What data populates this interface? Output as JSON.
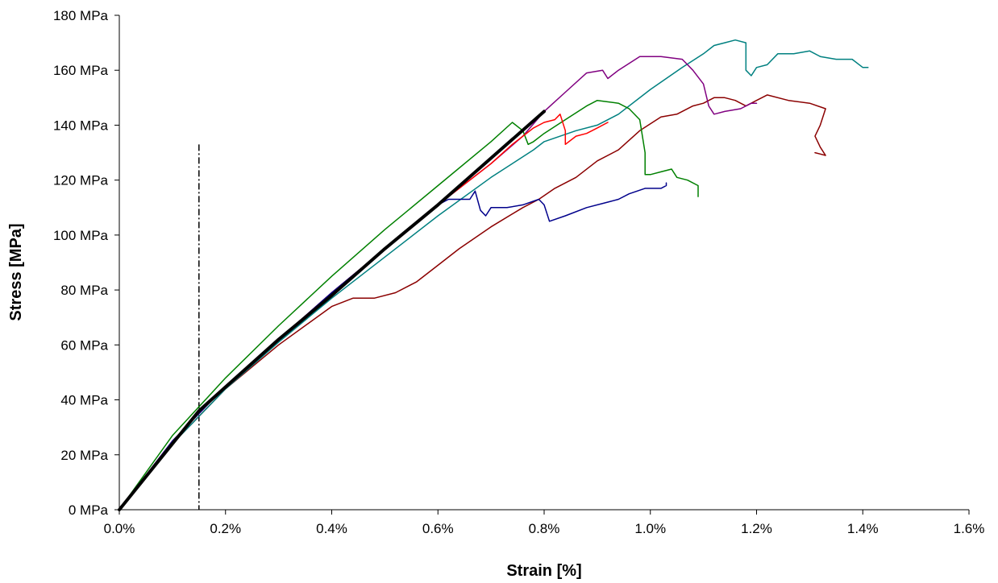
{
  "chart_data": {
    "type": "line",
    "title": "",
    "xlabel": "Strain [%]",
    "ylabel": "Stress [MPa]",
    "xlim": [
      0,
      1.6
    ],
    "ylim": [
      0,
      180
    ],
    "x_ticks": [
      0,
      0.2,
      0.4,
      0.6,
      0.8,
      1.0,
      1.2,
      1.4,
      1.6
    ],
    "x_tick_labels": [
      "0.0%",
      "0.2%",
      "0.4%",
      "0.6%",
      "0.8%",
      "1.0%",
      "1.2%",
      "1.4%",
      "1.6%"
    ],
    "y_ticks": [
      0,
      20,
      40,
      60,
      80,
      100,
      120,
      140,
      160,
      180
    ],
    "y_tick_labels": [
      "0 MPa",
      "20 MPa",
      "40 MPa",
      "60 MPa",
      "80 MPa",
      "100 MPa",
      "120 MPa",
      "140 MPa",
      "160 MPa",
      "180 MPa"
    ],
    "grid": false,
    "legend": "none",
    "reference_line": {
      "x": 0.15,
      "style": "dash-dot",
      "y_range": [
        0,
        133
      ],
      "color": "#000000"
    },
    "series": [
      {
        "color": "#8B0000",
        "width": 1.5,
        "points": [
          [
            0,
            0
          ],
          [
            0.1,
            24
          ],
          [
            0.2,
            44
          ],
          [
            0.3,
            60
          ],
          [
            0.4,
            74
          ],
          [
            0.44,
            77
          ],
          [
            0.48,
            77
          ],
          [
            0.52,
            79
          ],
          [
            0.56,
            83
          ],
          [
            0.6,
            89
          ],
          [
            0.64,
            95
          ],
          [
            0.7,
            103
          ],
          [
            0.76,
            110
          ],
          [
            0.79,
            113
          ],
          [
            0.82,
            117
          ],
          [
            0.86,
            121
          ],
          [
            0.9,
            127
          ],
          [
            0.94,
            131
          ],
          [
            0.98,
            138
          ],
          [
            1.02,
            143
          ],
          [
            1.05,
            144
          ],
          [
            1.08,
            147
          ],
          [
            1.1,
            148
          ],
          [
            1.12,
            150
          ],
          [
            1.14,
            150
          ],
          [
            1.16,
            149
          ],
          [
            1.18,
            147
          ],
          [
            1.2,
            149
          ],
          [
            1.22,
            151
          ],
          [
            1.26,
            149
          ],
          [
            1.3,
            148
          ],
          [
            1.33,
            146
          ],
          [
            1.32,
            140
          ],
          [
            1.31,
            136
          ],
          [
            1.32,
            132
          ],
          [
            1.33,
            129
          ],
          [
            1.31,
            130
          ]
        ]
      },
      {
        "color": "#008080",
        "width": 1.5,
        "points": [
          [
            0,
            0
          ],
          [
            0.1,
            24
          ],
          [
            0.2,
            44
          ],
          [
            0.3,
            61
          ],
          [
            0.4,
            77
          ],
          [
            0.5,
            92
          ],
          [
            0.6,
            107
          ],
          [
            0.7,
            121
          ],
          [
            0.78,
            131
          ],
          [
            0.8,
            134
          ],
          [
            0.86,
            138
          ],
          [
            0.9,
            140
          ],
          [
            0.94,
            144
          ],
          [
            1.0,
            153
          ],
          [
            1.06,
            161
          ],
          [
            1.1,
            166
          ],
          [
            1.12,
            169
          ],
          [
            1.14,
            170
          ],
          [
            1.16,
            171
          ],
          [
            1.18,
            170
          ],
          [
            1.18,
            165
          ],
          [
            1.18,
            160
          ],
          [
            1.19,
            158
          ],
          [
            1.2,
            161
          ],
          [
            1.22,
            162
          ],
          [
            1.24,
            166
          ],
          [
            1.27,
            166
          ],
          [
            1.3,
            167
          ],
          [
            1.32,
            165
          ],
          [
            1.35,
            164
          ],
          [
            1.38,
            164
          ],
          [
            1.4,
            161
          ],
          [
            1.41,
            161
          ]
        ]
      },
      {
        "color": "#800080",
        "width": 1.5,
        "points": [
          [
            0,
            0
          ],
          [
            0.1,
            25
          ],
          [
            0.2,
            45
          ],
          [
            0.3,
            62
          ],
          [
            0.4,
            79
          ],
          [
            0.5,
            95
          ],
          [
            0.6,
            111
          ],
          [
            0.7,
            126
          ],
          [
            0.76,
            136
          ],
          [
            0.8,
            145
          ],
          [
            0.84,
            152
          ],
          [
            0.88,
            159
          ],
          [
            0.91,
            160
          ],
          [
            0.92,
            157
          ],
          [
            0.94,
            160
          ],
          [
            0.98,
            165
          ],
          [
            1.02,
            165
          ],
          [
            1.06,
            164
          ],
          [
            1.08,
            160
          ],
          [
            1.1,
            155
          ],
          [
            1.11,
            147
          ],
          [
            1.12,
            144
          ],
          [
            1.14,
            145
          ],
          [
            1.17,
            146
          ],
          [
            1.19,
            148
          ],
          [
            1.2,
            148
          ]
        ]
      },
      {
        "color": "#008000",
        "width": 1.5,
        "points": [
          [
            0,
            0
          ],
          [
            0.1,
            27
          ],
          [
            0.2,
            48
          ],
          [
            0.3,
            67
          ],
          [
            0.4,
            85
          ],
          [
            0.5,
            102
          ],
          [
            0.6,
            118
          ],
          [
            0.7,
            134
          ],
          [
            0.74,
            141
          ],
          [
            0.76,
            138
          ],
          [
            0.77,
            133
          ],
          [
            0.78,
            134
          ],
          [
            0.8,
            137
          ],
          [
            0.84,
            142
          ],
          [
            0.88,
            147
          ],
          [
            0.9,
            149
          ],
          [
            0.94,
            148
          ],
          [
            0.96,
            146
          ],
          [
            0.98,
            142
          ],
          [
            0.99,
            130
          ],
          [
            0.99,
            122
          ],
          [
            1.0,
            122
          ],
          [
            1.02,
            123
          ],
          [
            1.04,
            124
          ],
          [
            1.05,
            121
          ],
          [
            1.07,
            120
          ],
          [
            1.09,
            118
          ],
          [
            1.09,
            114
          ]
        ]
      },
      {
        "color": "#FF0000",
        "width": 1.5,
        "points": [
          [
            0,
            0
          ],
          [
            0.1,
            25
          ],
          [
            0.2,
            45
          ],
          [
            0.3,
            62
          ],
          [
            0.4,
            79
          ],
          [
            0.5,
            95
          ],
          [
            0.6,
            111
          ],
          [
            0.7,
            126
          ],
          [
            0.74,
            133
          ],
          [
            0.78,
            139
          ],
          [
            0.8,
            141
          ],
          [
            0.82,
            142
          ],
          [
            0.83,
            144
          ],
          [
            0.84,
            138
          ],
          [
            0.84,
            133
          ],
          [
            0.86,
            136
          ],
          [
            0.88,
            137
          ],
          [
            0.9,
            139
          ],
          [
            0.92,
            141
          ]
        ]
      },
      {
        "color": "#00008B",
        "width": 1.5,
        "points": [
          [
            0,
            0
          ],
          [
            0.1,
            25
          ],
          [
            0.2,
            45
          ],
          [
            0.3,
            62
          ],
          [
            0.4,
            79
          ],
          [
            0.5,
            95
          ],
          [
            0.6,
            111
          ],
          [
            0.62,
            113
          ],
          [
            0.64,
            113
          ],
          [
            0.66,
            113
          ],
          [
            0.67,
            116
          ],
          [
            0.68,
            109
          ],
          [
            0.69,
            107
          ],
          [
            0.7,
            110
          ],
          [
            0.73,
            110
          ],
          [
            0.76,
            111
          ],
          [
            0.79,
            113
          ],
          [
            0.8,
            111
          ],
          [
            0.81,
            105
          ],
          [
            0.84,
            107
          ],
          [
            0.88,
            110
          ],
          [
            0.92,
            112
          ],
          [
            0.94,
            113
          ],
          [
            0.96,
            115
          ],
          [
            0.99,
            117
          ],
          [
            1.02,
            117
          ],
          [
            1.03,
            118
          ],
          [
            1.03,
            119
          ]
        ]
      },
      {
        "color": "#000000",
        "width": 4,
        "points": [
          [
            0,
            0
          ],
          [
            0.15,
            36
          ],
          [
            0.3,
            62
          ],
          [
            0.4,
            78
          ],
          [
            0.5,
            95
          ],
          [
            0.6,
            111
          ],
          [
            0.7,
            128
          ],
          [
            0.8,
            145
          ]
        ]
      }
    ]
  }
}
